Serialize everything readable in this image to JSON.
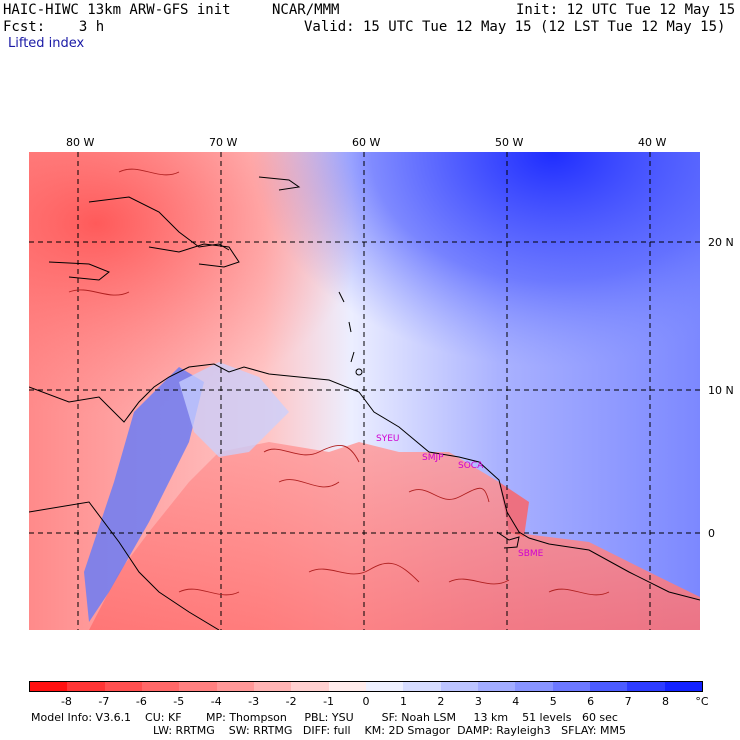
{
  "header": {
    "model": "HAIC-HIWC 13km ARW-GFS init",
    "center": "NCAR/MMM",
    "init": "Init: 12 UTC Tue 12 May 15",
    "fcst": "Fcst:    3 h",
    "valid": "Valid: 15 UTC Tue 12 May 15 (12 LST Tue 12 May 15)",
    "field": "Lifted index"
  },
  "map": {
    "lon_labels": [
      "80 W",
      "70 W",
      "60 W",
      "50 W",
      "40 W"
    ],
    "lat_labels": [
      "20 N",
      "10 N",
      "0"
    ],
    "stations": [
      "SYEU",
      "SMJP",
      "SOCA",
      "SBME"
    ]
  },
  "colorbar": {
    "ticks": [
      "-8",
      "-7",
      "-6",
      "-5",
      "-4",
      "-3",
      "-2",
      "-1",
      "0",
      "1",
      "2",
      "3",
      "4",
      "5",
      "6",
      "7",
      "8"
    ],
    "unit": "°C",
    "colors": [
      "#ff1010",
      "#ff3535",
      "#ff5050",
      "#ff6868",
      "#ff8080",
      "#ff9898",
      "#ffb4b4",
      "#ffd0d0",
      "#ffecec",
      "#eef0ff",
      "#d6dcff",
      "#bcc4ff",
      "#a2acff",
      "#8894ff",
      "#6c78ff",
      "#4c5cff",
      "#2d3cff",
      "#1222ff"
    ]
  },
  "info": {
    "line1": "Model Info: V3.6.1    CU: KF       MP: Thompson     PBL: YSU        SF: Noah LSM     13 km    51 levels   60 sec",
    "line2": "LW: RRTMG    SW: RRTMG   DIFF: full    KM: 2D Smagor  DAMP: Rayleigh3   SFLAY: MM5"
  },
  "colors": {
    "warm": "#ff7a7a",
    "cool": "#6a78f0"
  }
}
